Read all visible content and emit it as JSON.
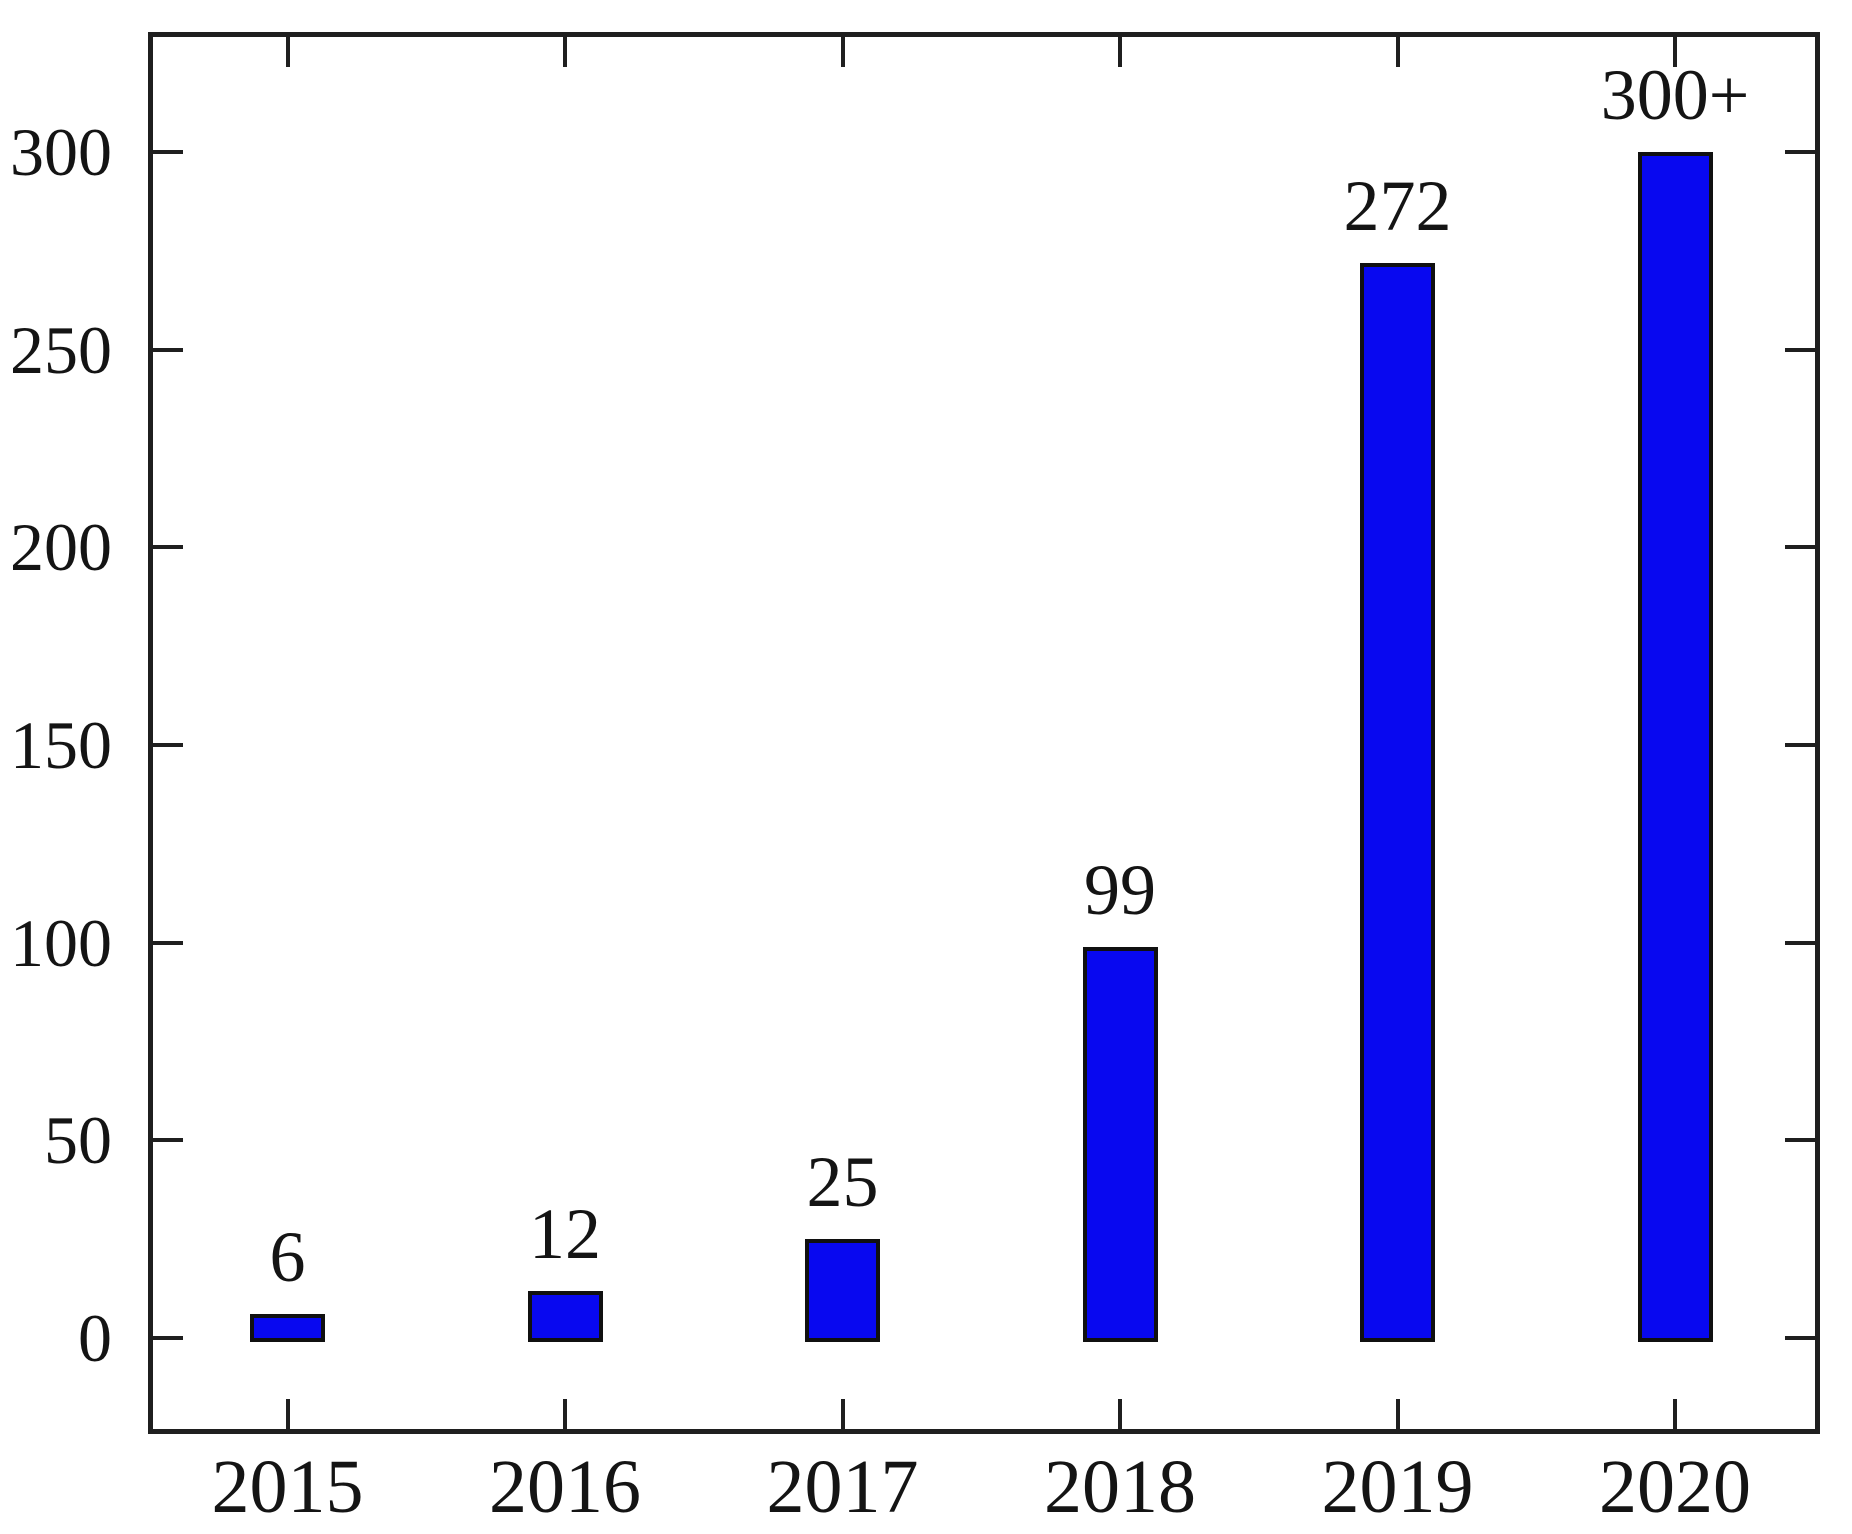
{
  "chart_data": {
    "type": "bar",
    "title": "",
    "xlabel": "",
    "ylabel": "",
    "categories": [
      "2015",
      "2016",
      "2017",
      "2018",
      "2019",
      "2020"
    ],
    "values": [
      6,
      12,
      25,
      99,
      272,
      300
    ],
    "bar_labels": [
      "6",
      "12",
      "25",
      "99",
      "272",
      "300+"
    ],
    "yticks": [
      0,
      50,
      100,
      150,
      200,
      250,
      300
    ],
    "ytick_labels": [
      "0",
      "50",
      "100",
      "150",
      "200",
      "250",
      "300"
    ],
    "ylim": [
      -23.3,
      329.8
    ],
    "grid": false,
    "legend_position": "none",
    "tick_style": "inward-mirrored-all-sides",
    "colors": {
      "bar_fill": "#0808f0",
      "bar_border": "#101010",
      "axis": "#1f1f1f",
      "text": "#141414",
      "background": "#ffffff"
    }
  }
}
